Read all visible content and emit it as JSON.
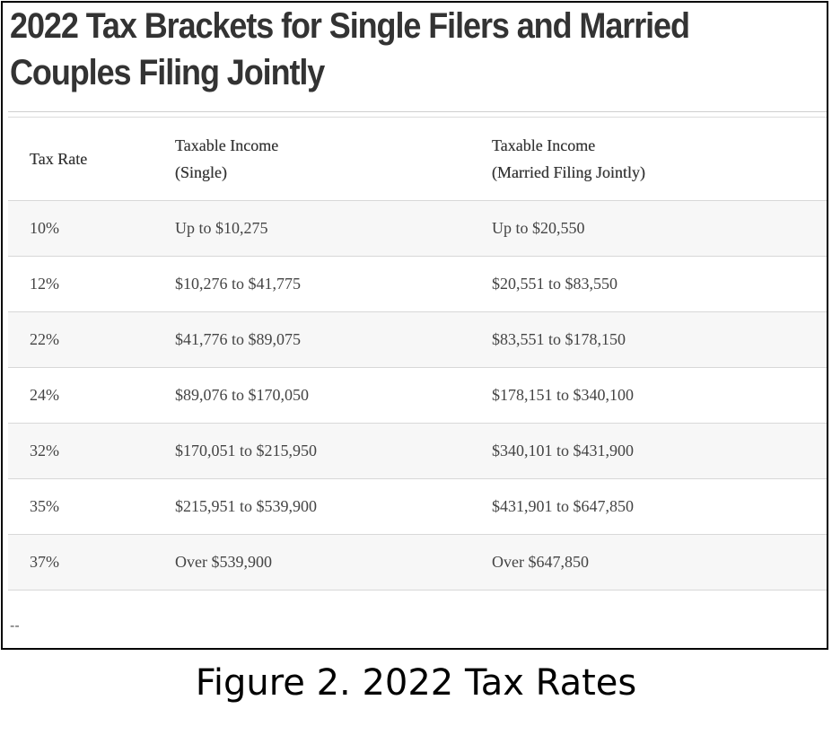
{
  "heading": "2022 Tax Brackets for Single Filers and Married Couples Filing Jointly",
  "table": {
    "headers": {
      "rate": "Tax Rate",
      "single_line1": "Taxable Income",
      "single_line2": "(Single)",
      "joint_line1": "Taxable Income",
      "joint_line2": "(Married Filing Jointly)"
    },
    "rows": [
      {
        "rate": "10%",
        "single": "Up to $10,275",
        "joint": "Up to $20,550"
      },
      {
        "rate": "12%",
        "single": "$10,276 to $41,775",
        "joint": "$20,551 to $83,550"
      },
      {
        "rate": "22%",
        "single": "$41,776 to $89,075",
        "joint": "$83,551 to $178,150"
      },
      {
        "rate": "24%",
        "single": "$89,076 to $170,050",
        "joint": "$178,151 to $340,100"
      },
      {
        "rate": "32%",
        "single": "$170,051 to $215,950",
        "joint": "$340,101 to $431,900"
      },
      {
        "rate": "35%",
        "single": "$215,951 to $539,900",
        "joint": "$431,901 to $647,850"
      },
      {
        "rate": "37%",
        "single": "Over $539,900",
        "joint": "Over $647,850"
      }
    ]
  },
  "footer_dashes": "--",
  "caption": "Figure 2. 2022 Tax Rates"
}
